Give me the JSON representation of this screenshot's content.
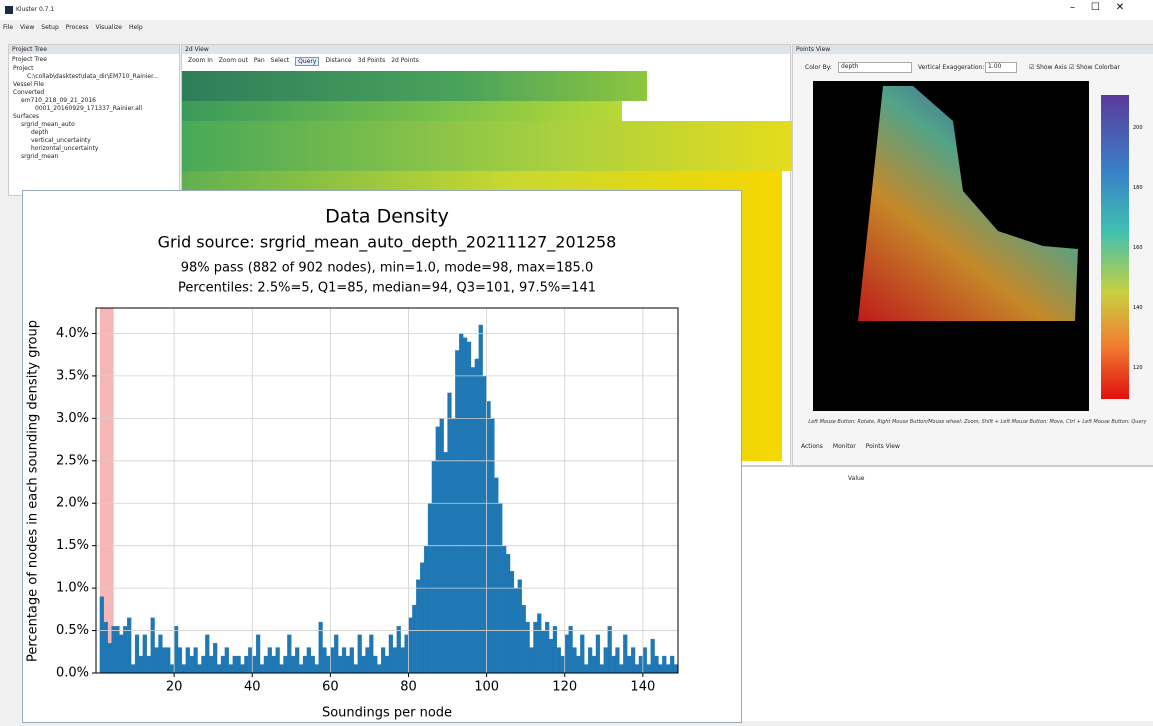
{
  "window": {
    "title": "Kluster 0.7.1",
    "menu": [
      "File",
      "View",
      "Setup",
      "Process",
      "Visualize",
      "Help"
    ]
  },
  "project_tree": {
    "header": "Project Tree",
    "label": "Project Tree",
    "items": [
      "Project",
      "C:\\collab\\dasktest\\data_dir\\EM710_Rainier...",
      "Vessel File",
      "Converted",
      "em710_218_09_21_2016",
      "0001_20160929_171337_Rainier.all",
      "Surfaces",
      "srgrid_mean_auto",
      "depth",
      "vertical_uncertainty",
      "horizontal_uncertainty",
      "srgrid_mean"
    ]
  },
  "view_2d": {
    "header": "2d View",
    "toolbar": [
      "Zoom In",
      "Zoom out",
      "Pan",
      "Select",
      "Query",
      "Distance",
      "3d Points",
      "2d Points"
    ]
  },
  "points_view": {
    "header": "Points View",
    "color_by_label": "Color By:",
    "color_by": "depth",
    "vertical_exaggeration_label": "Vertical Exaggeration:",
    "vertical_exaggeration": "1.00",
    "show_axis": "Show Axis",
    "show_colorbar": "Show Colorbar",
    "colorbar_ticks": [
      200,
      180,
      160,
      140,
      120
    ],
    "help": "Left Mouse Button: Rotate, Right Mouse Button/Mouse wheel: Zoom, Shift + Left Mouse Button: Move, Ctrl + Left Mouse Button: Query",
    "tabs": [
      "Actions",
      "Monitor",
      "Points View"
    ]
  },
  "table": {
    "header": "Value"
  },
  "chart_data": {
    "type": "histogram",
    "title": "Data Density",
    "subtitle": "Grid source: srgrid_mean_auto_depth_20211127_201258",
    "annotations": [
      "98% pass (882 of 902 nodes), min=1.0, mode=98, max=185.0",
      "Percentiles: 2.5%=5, Q1=85, median=94, Q3=101, 97.5%=141"
    ],
    "xlabel": "Soundings per node",
    "ylabel": "Percentage of nodes in each sounding density group",
    "bins": [
      1,
      2,
      3,
      4,
      5,
      6,
      7,
      8,
      9,
      10,
      11,
      12,
      13,
      14,
      15,
      16,
      17,
      18,
      19,
      20,
      21,
      22,
      23,
      24,
      25,
      26,
      27,
      28,
      29,
      30,
      31,
      32,
      33,
      34,
      35,
      36,
      37,
      38,
      39,
      40,
      41,
      42,
      43,
      44,
      45,
      46,
      47,
      48,
      49,
      50,
      51,
      52,
      53,
      54,
      55,
      56,
      57,
      58,
      59,
      60,
      61,
      62,
      63,
      64,
      65,
      66,
      67,
      68,
      69,
      70,
      71,
      72,
      73,
      74,
      75,
      76,
      77,
      78,
      79,
      80,
      81,
      82,
      83,
      84,
      85,
      86,
      87,
      88,
      89,
      90,
      91,
      92,
      93,
      94,
      95,
      96,
      97,
      98,
      99,
      100,
      101,
      102,
      103,
      104,
      105,
      106,
      107,
      108,
      109,
      110,
      111,
      112,
      113,
      114,
      115,
      116,
      117,
      118,
      119,
      120,
      121,
      122,
      123,
      124,
      125,
      126,
      127,
      128,
      129,
      130,
      131,
      132,
      133,
      134,
      135,
      136,
      137,
      138,
      139,
      140,
      141,
      142,
      143,
      144,
      145,
      146,
      147,
      148,
      149
    ],
    "values": [
      0.9,
      0.6,
      0.35,
      0.55,
      0.55,
      0.45,
      0.55,
      0.65,
      0.1,
      0.45,
      0.2,
      0.45,
      0.2,
      0.65,
      0.3,
      0.45,
      0.3,
      0.3,
      0.1,
      0.55,
      0.3,
      0.1,
      0.3,
      0.2,
      0.3,
      0.1,
      0.2,
      0.45,
      0.2,
      0.35,
      0.1,
      0.2,
      0.3,
      0.1,
      0.2,
      0.2,
      0.1,
      0.2,
      0.3,
      0.2,
      0.45,
      0.1,
      0.2,
      0.3,
      0.2,
      0.3,
      0.1,
      0.2,
      0.45,
      0.2,
      0.3,
      0.1,
      0.2,
      0.3,
      0.2,
      0.1,
      0.6,
      0.3,
      0.2,
      0.3,
      0.45,
      0.2,
      0.3,
      0.2,
      0.3,
      0.1,
      0.45,
      0.2,
      0.3,
      0.45,
      0.2,
      0.1,
      0.3,
      0.2,
      0.45,
      0.3,
      0.55,
      0.3,
      0.45,
      0.65,
      0.8,
      1.1,
      1.3,
      1.5,
      2.0,
      2.5,
      2.9,
      3.0,
      2.6,
      3.3,
      3.0,
      3.8,
      4.0,
      3.95,
      3.9,
      3.6,
      3.7,
      4.1,
      3.5,
      3.2,
      3.0,
      2.3,
      2.0,
      1.5,
      1.4,
      1.2,
      1.0,
      1.1,
      0.8,
      0.6,
      0.3,
      0.6,
      0.7,
      0.5,
      0.6,
      0.4,
      0.55,
      0.3,
      0.2,
      0.45,
      0.55,
      0.3,
      0.2,
      0.45,
      0.1,
      0.3,
      0.2,
      0.45,
      0.1,
      0.3,
      0.55,
      0.2,
      0.3,
      0.1,
      0.45,
      0.2,
      0.3,
      0.1,
      0.2,
      0.3,
      0.1,
      0.4,
      0.2,
      0.1,
      0.2,
      0.1,
      0.2,
      0.1
    ],
    "color": "#1f77b4",
    "highlight": {
      "x": [
        1,
        4.5
      ],
      "color": "#f4a4a4"
    },
    "xlim": [
      0,
      149
    ],
    "xticks": [
      20,
      40,
      60,
      80,
      100,
      120,
      140
    ],
    "ylim": [
      0,
      4.3
    ],
    "yticks": [
      {
        "value": 0,
        "label": "0.0%"
      },
      {
        "value": 0.5,
        "label": "0.5%"
      },
      {
        "value": 1,
        "label": "1.0%"
      },
      {
        "value": 1.5,
        "label": "1.5%"
      },
      {
        "value": 2,
        "label": "2.0%"
      },
      {
        "value": 2.5,
        "label": "2.5%"
      },
      {
        "value": 3,
        "label": "3.0%"
      },
      {
        "value": 3.5,
        "label": "3.5%"
      },
      {
        "value": 4,
        "label": "4.0%"
      }
    ],
    "grid": true
  }
}
